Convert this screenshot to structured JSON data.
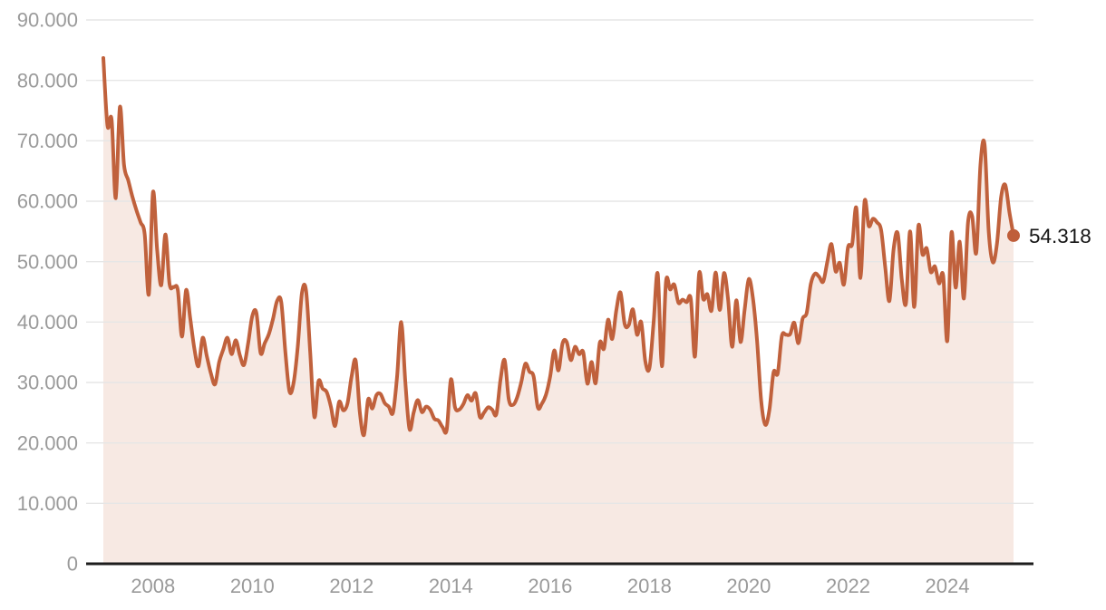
{
  "chart": {
    "end_label": "54.318",
    "colors": {
      "line": "#c0613c",
      "dot": "#bf5e3a",
      "area_fill": "#f7e9e3",
      "grid": "#e6e6e6",
      "axis": "#1d1d1d",
      "tick_text": "#9a9a9a",
      "value_label_text": "#141414",
      "background": "#ffffff"
    }
  },
  "chart_data": {
    "type": "area",
    "title": "",
    "xlabel": "",
    "ylabel": "",
    "frequency": "monthly",
    "x_start": "2007-01",
    "x_end": "2025-05",
    "unit": "thousands (y axis shown with dot thousands separator)",
    "ylim": [
      0,
      90
    ],
    "grid": true,
    "legend": false,
    "last_point_label": "54.318",
    "last_value": 54.318,
    "x_tick_labels": [
      "2008",
      "2010",
      "2012",
      "2014",
      "2016",
      "2018",
      "2020",
      "2022",
      "2024"
    ],
    "x_tick_years": [
      2008,
      2010,
      2012,
      2014,
      2016,
      2018,
      2020,
      2022,
      2024
    ],
    "y_tick_labels": [
      "0",
      "10.000",
      "20.000",
      "30.000",
      "40.000",
      "50.000",
      "60.000",
      "70.000",
      "80.000",
      "90.000"
    ],
    "y_tick_values": [
      0,
      10,
      20,
      30,
      40,
      50,
      60,
      70,
      80,
      90
    ],
    "values": [
      83.7,
      72.5,
      73.5,
      60.5,
      75.6,
      66.0,
      63.5,
      60.8,
      58.5,
      56.5,
      54.5,
      44.6,
      61.5,
      52.0,
      46.1,
      54.5,
      46.3,
      45.8,
      45.3,
      37.6,
      45.3,
      40.6,
      35.6,
      32.7,
      37.4,
      34.4,
      31.5,
      29.7,
      33.4,
      35.5,
      37.4,
      34.7,
      37.0,
      34.5,
      32.9,
      36.5,
      41.0,
      41.5,
      34.9,
      36.5,
      38.0,
      40.5,
      43.5,
      43.3,
      35.0,
      28.5,
      30.0,
      36.0,
      44.8,
      45.2,
      35.0,
      24.3,
      30.2,
      29.0,
      28.4,
      26.0,
      22.8,
      26.8,
      25.4,
      26.5,
      31.0,
      33.6,
      25.0,
      21.3,
      27.2,
      25.7,
      27.9,
      28.1,
      26.6,
      26.0,
      25.0,
      31.0,
      40.0,
      30.0,
      22.3,
      25.0,
      27.1,
      25.1,
      26.0,
      25.5,
      24.0,
      23.7,
      22.6,
      22.2,
      30.5,
      25.9,
      25.5,
      26.4,
      27.9,
      27.0,
      28.2,
      24.3,
      25.0,
      25.9,
      25.5,
      24.8,
      30.5,
      33.7,
      27.2,
      26.3,
      27.5,
      30.0,
      33.1,
      31.8,
      31.0,
      25.9,
      26.5,
      28.0,
      31.0,
      35.3,
      32.0,
      36.5,
      36.7,
      33.7,
      35.9,
      34.7,
      35.0,
      29.8,
      33.4,
      29.9,
      36.6,
      35.6,
      40.4,
      37.2,
      42.0,
      44.9,
      39.7,
      39.5,
      42.1,
      37.9,
      40.0,
      33.5,
      32.4,
      39.9,
      48.0,
      32.7,
      46.7,
      45.4,
      46.2,
      43.2,
      43.7,
      43.3,
      43.8,
      34.3,
      48.0,
      43.8,
      44.6,
      41.9,
      48.2,
      42.0,
      48.1,
      43.8,
      35.9,
      43.6,
      36.7,
      42.0,
      47.1,
      44.0,
      37.0,
      27.0,
      23.0,
      25.5,
      31.7,
      31.5,
      37.7,
      37.9,
      38.0,
      39.9,
      36.5,
      40.5,
      41.5,
      46.3,
      48.0,
      47.5,
      46.7,
      50.0,
      52.9,
      48.4,
      49.8,
      46.2,
      52.4,
      52.9,
      58.9,
      47.3,
      60.0,
      55.9,
      57.1,
      56.5,
      55.2,
      49.0,
      43.5,
      52.0,
      54.7,
      47.0,
      43.1,
      55.0,
      42.5,
      55.9,
      51.2,
      52.2,
      48.3,
      49.2,
      46.4,
      47.7,
      36.9,
      54.8,
      45.7,
      53.3,
      43.9,
      56.5,
      57.5,
      51.5,
      66.0,
      69.4,
      55.0,
      49.9,
      53.0,
      60.7,
      62.7,
      58.2,
      54.318
    ]
  }
}
